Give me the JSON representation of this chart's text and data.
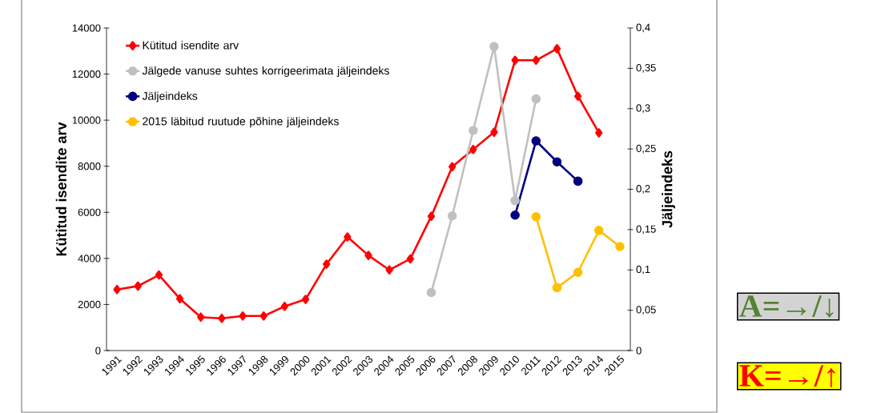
{
  "chart_data": {
    "type": "line",
    "categories": [
      "1991",
      "1992",
      "1993",
      "1994",
      "1995",
      "1996",
      "1997",
      "1998",
      "1999",
      "2000",
      "2001",
      "2002",
      "2003",
      "2004",
      "2005",
      "2006",
      "2007",
      "2008",
      "2009",
      "2010",
      "2011",
      "2012",
      "2013",
      "2014",
      "2015"
    ],
    "ylabel": "Kütitud isendite arv",
    "y2label": "Jäljeindeks",
    "ylim": [
      0,
      14000
    ],
    "yticks": [
      0,
      2000,
      4000,
      6000,
      8000,
      10000,
      12000,
      14000
    ],
    "y2lim": [
      0,
      0.4
    ],
    "y2ticks": [
      0,
      {
        "value": 0.05,
        "label": "0,05"
      },
      {
        "value": 0.1,
        "label": "0,1"
      },
      {
        "value": 0.15,
        "label": "0,15"
      },
      {
        "value": 0.2,
        "label": "0,2"
      },
      {
        "value": 0.25,
        "label": "0,25"
      },
      {
        "value": 0.3,
        "label": "0,3"
      },
      {
        "value": 0.35,
        "label": "0,35"
      },
      {
        "value": 0.4,
        "label": "0,4"
      }
    ],
    "legend": "top left",
    "series": [
      {
        "name": "Kütitud isendite arv",
        "color": "#ff0000",
        "marker": "diamond",
        "values": [
          2650,
          2800,
          3280,
          2250,
          1450,
          1400,
          1500,
          1500,
          1920,
          2220,
          3750,
          4930,
          4130,
          3500,
          3980,
          5830,
          7980,
          8730,
          9480,
          12600,
          12600,
          13100,
          11040,
          9450,
          null
        ]
      },
      {
        "name": "Jälgede vanuse suhtes korrigeerimata jäljeindeks",
        "color": "#c0c0c0",
        "marker": "circle",
        "axis": "y2",
        "values": [
          null,
          null,
          null,
          null,
          null,
          null,
          null,
          null,
          null,
          null,
          null,
          null,
          null,
          null,
          null,
          0.072,
          0.167,
          0.273,
          0.377,
          0.186,
          0.312,
          null,
          null,
          null,
          null
        ]
      },
      {
        "name": "Jäljeindeks",
        "color": "#000080",
        "marker": "circle",
        "axis": "y2",
        "values": [
          null,
          null,
          null,
          null,
          null,
          null,
          null,
          null,
          null,
          null,
          null,
          null,
          null,
          null,
          null,
          null,
          null,
          null,
          null,
          0.168,
          0.26,
          0.234,
          0.21,
          null,
          null
        ]
      },
      {
        "name": "2015 läbitud ruutude põhine jäljeindeks",
        "color": "#ffc000",
        "marker": "circle",
        "axis": "y2",
        "values": [
          null,
          null,
          null,
          null,
          null,
          null,
          null,
          null,
          null,
          null,
          null,
          null,
          null,
          null,
          null,
          null,
          null,
          null,
          null,
          null,
          0.166,
          0.078,
          0.097,
          0.149,
          0.129
        ]
      }
    ],
    "annotations": [
      "A=→/↓",
      "K=→/↑"
    ]
  }
}
